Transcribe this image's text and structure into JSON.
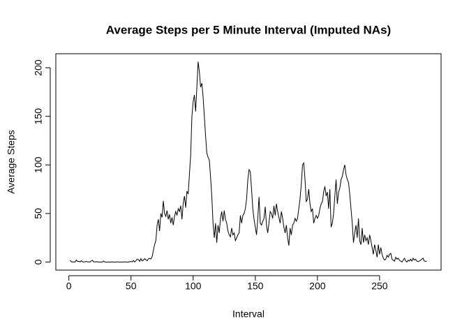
{
  "chart_data": {
    "type": "line",
    "title": "Average Steps per 5 Minute Interval (Imputed NAs)",
    "x_label": "Interval",
    "y_label": "Average Steps",
    "x": [
      1,
      2,
      3,
      4,
      5,
      6,
      7,
      8,
      9,
      10,
      11,
      12,
      13,
      14,
      15,
      16,
      17,
      18,
      19,
      20,
      21,
      22,
      23,
      24,
      25,
      26,
      27,
      28,
      29,
      30,
      31,
      32,
      33,
      34,
      35,
      36,
      37,
      38,
      39,
      40,
      41,
      42,
      43,
      44,
      45,
      46,
      47,
      48,
      49,
      50,
      51,
      52,
      53,
      54,
      55,
      56,
      57,
      58,
      59,
      60,
      61,
      62,
      63,
      64,
      65,
      66,
      67,
      68,
      69,
      70,
      71,
      72,
      73,
      74,
      75,
      76,
      77,
      78,
      79,
      80,
      81,
      82,
      83,
      84,
      85,
      86,
      87,
      88,
      89,
      90,
      91,
      92,
      93,
      94,
      95,
      96,
      97,
      98,
      99,
      100,
      101,
      102,
      103,
      104,
      105,
      106,
      107,
      108,
      109,
      110,
      111,
      112,
      113,
      114,
      115,
      116,
      117,
      118,
      119,
      120,
      121,
      122,
      123,
      124,
      125,
      126,
      127,
      128,
      129,
      130,
      131,
      132,
      133,
      134,
      135,
      136,
      137,
      138,
      139,
      140,
      141,
      142,
      143,
      144,
      145,
      146,
      147,
      148,
      149,
      150,
      151,
      152,
      153,
      154,
      155,
      156,
      157,
      158,
      159,
      160,
      161,
      162,
      163,
      164,
      165,
      166,
      167,
      168,
      169,
      170,
      171,
      172,
      173,
      174,
      175,
      176,
      177,
      178,
      179,
      180,
      181,
      182,
      183,
      184,
      185,
      186,
      187,
      188,
      189,
      190,
      191,
      192,
      193,
      194,
      195,
      196,
      197,
      198,
      199,
      200,
      201,
      202,
      203,
      204,
      205,
      206,
      207,
      208,
      209,
      210,
      211,
      212,
      213,
      214,
      215,
      216,
      217,
      218,
      219,
      220,
      221,
      222,
      223,
      224,
      225,
      226,
      227,
      228,
      229,
      230,
      231,
      232,
      233,
      234,
      235,
      236,
      237,
      238,
      239,
      240,
      241,
      242,
      243,
      244,
      245,
      246,
      247,
      248,
      249,
      250,
      251,
      252,
      253,
      254,
      255,
      256,
      257,
      258,
      259,
      260,
      261,
      262,
      263,
      264,
      265,
      266,
      267,
      268,
      269,
      270,
      271,
      272,
      273,
      274,
      275,
      276,
      277,
      278,
      279,
      280,
      281,
      282,
      283,
      284,
      285,
      286,
      287,
      288
    ],
    "series": [
      {
        "color": "#000000",
        "values": [
          1.7,
          0.3,
          0.1,
          0.2,
          0.1,
          2.1,
          0.5,
          0.9,
          0,
          1.5,
          0.3,
          0.1,
          0.3,
          0.7,
          0.2,
          0.3,
          0,
          1.1,
          1.8,
          0.2,
          0.2,
          0.4,
          0.3,
          0,
          0,
          0,
          0,
          1.1,
          0,
          0,
          0,
          0,
          0.1,
          0,
          0.2,
          0,
          0,
          0,
          0.3,
          0.1,
          0,
          0,
          0,
          0,
          0.3,
          0,
          0,
          0,
          0.4,
          0.6,
          0.2,
          1.6,
          0,
          1.5,
          3.1,
          2.5,
          0.8,
          3.5,
          1.2,
          2.1,
          3.5,
          2.3,
          1.4,
          3.3,
          3.8,
          3.2,
          5.5,
          12,
          18,
          22,
          38,
          44,
          32,
          50,
          46,
          63,
          50,
          47,
          53,
          44,
          49,
          40,
          46,
          38,
          47,
          52,
          48,
          55,
          52,
          58,
          44,
          60,
          68,
          56,
          73,
          70,
          90,
          110,
          150,
          165,
          172,
          155,
          180,
          206.2,
          196,
          180,
          184,
          170,
          150,
          130,
          112,
          108,
          105,
          88,
          68,
          40,
          25,
          40,
          20,
          38,
          30,
          45,
          52,
          42,
          53,
          44,
          40,
          32,
          28,
          26,
          35,
          28,
          30,
          22,
          25,
          28,
          30,
          48,
          40,
          48,
          50,
          55,
          65,
          85,
          95,
          93,
          75,
          55,
          44,
          36,
          28,
          45,
          67,
          40,
          38,
          42,
          45,
          57,
          38,
          30,
          40,
          52,
          50,
          45,
          58,
          48,
          60,
          52,
          46,
          40,
          52,
          45,
          36,
          30,
          38,
          25,
          17,
          35,
          28,
          38,
          40,
          45,
          42,
          45,
          55,
          65,
          80,
          100,
          102,
          85,
          62,
          65,
          75,
          60,
          52,
          55,
          40,
          45,
          48,
          45,
          48,
          55,
          60,
          62,
          72,
          78,
          68,
          72,
          55,
          75,
          36,
          40,
          50,
          68,
          85,
          60,
          72,
          76,
          85,
          88,
          95,
          100,
          90,
          85,
          82,
          70,
          55,
          40,
          20,
          30,
          38,
          25,
          45,
          22,
          18,
          35,
          20,
          28,
          22,
          25,
          18,
          28,
          22,
          15,
          8,
          18,
          12,
          5,
          18,
          8,
          15,
          8,
          4,
          2,
          3,
          7,
          5,
          8,
          9,
          3,
          2,
          1,
          5,
          3,
          4,
          2,
          1,
          0,
          2,
          4,
          1,
          0,
          2,
          1,
          3,
          1,
          4,
          2,
          3,
          1,
          0.5,
          1,
          2,
          3,
          4,
          1,
          0.7,
          1.1
        ]
      }
    ],
    "xlim": [
      -10.48,
      299.48
    ],
    "ylim": [
      -8.25,
      214.4
    ],
    "xticks": [
      0,
      50,
      100,
      150,
      200,
      250
    ],
    "yticks": [
      0,
      50,
      100,
      150,
      200
    ]
  }
}
